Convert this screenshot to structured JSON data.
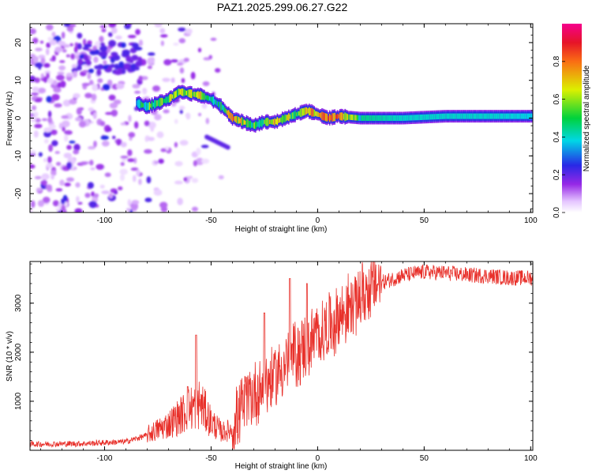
{
  "title": "PAZ1.2025.299.06.27.G22",
  "chart_data": [
    {
      "type": "heatmap",
      "title": "PAZ1.2025.299.06.27.G22",
      "xlabel": "Height of straight line (km)",
      "ylabel": "Frequency (Hz)",
      "xlim": [
        -135,
        101
      ],
      "ylim": [
        -25,
        25
      ],
      "xticks": [
        -100,
        -50,
        0,
        50,
        100
      ],
      "yticks": [
        -20,
        -10,
        0,
        10,
        20
      ],
      "colorbar": {
        "label": "Normalized spectral amplitude",
        "range": [
          0,
          1
        ],
        "ticks": [
          0.0,
          0.2,
          0.4,
          0.6,
          0.8
        ],
        "tick_labels": [
          "0.0",
          "0.2",
          "0.4",
          "0.6",
          "0.8"
        ]
      },
      "ridge": {
        "x": [
          -85,
          -80,
          -70,
          -65,
          -55,
          -50,
          -45,
          -40,
          -35,
          -30,
          -25,
          -20,
          -15,
          -10,
          -5,
          0,
          5,
          10,
          20,
          40,
          60,
          80,
          101
        ],
        "freq": [
          4,
          3,
          5,
          7,
          6,
          5,
          3,
          0,
          -1,
          -2,
          -1,
          -1,
          0,
          1,
          2,
          1,
          0,
          0.5,
          0,
          0,
          0.5,
          0.5,
          0.5
        ],
        "amp": [
          0.4,
          0.5,
          0.55,
          0.6,
          0.6,
          0.4,
          0.45,
          0.75,
          0.6,
          0.5,
          0.55,
          0.7,
          0.6,
          0.5,
          0.75,
          0.65,
          0.85,
          0.8,
          0.45,
          0.4,
          0.4,
          0.4,
          0.38
        ]
      }
    },
    {
      "type": "line",
      "xlabel": "Height of straight line (km)",
      "ylabel": "SNR (10 * v/v)",
      "xlim": [
        -135,
        101
      ],
      "ylim": [
        0,
        3850
      ],
      "xticks": [
        -100,
        -50,
        0,
        50,
        100
      ],
      "yticks": [
        1000,
        2000,
        3000
      ],
      "series_color": "#e8302a",
      "envelope": {
        "x": [
          -135,
          -110,
          -90,
          -80,
          -70,
          -60,
          -55,
          -50,
          -45,
          -40,
          -35,
          -30,
          -25,
          -20,
          -15,
          -10,
          -5,
          0,
          5,
          10,
          15,
          20,
          25,
          30,
          40,
          50,
          60,
          70,
          80,
          90,
          101
        ],
        "snr": [
          120,
          130,
          170,
          300,
          500,
          800,
          900,
          550,
          350,
          400,
          850,
          1100,
          1250,
          1450,
          1700,
          1900,
          2050,
          2250,
          2450,
          2650,
          2850,
          3050,
          3250,
          3400,
          3550,
          3620,
          3600,
          3560,
          3540,
          3500,
          3500
        ]
      },
      "spikes": [
        {
          "x": -57,
          "snr": 2350
        },
        {
          "x": -61,
          "snr": 1300
        },
        {
          "x": -25,
          "snr": 2800
        },
        {
          "x": -13,
          "snr": 3500
        },
        {
          "x": -5,
          "snr": 3400
        }
      ]
    }
  ]
}
